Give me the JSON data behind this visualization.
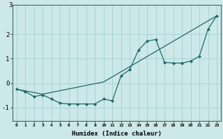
{
  "xlabel": "Humidex (Indice chaleur)",
  "bg_color": "#cce8e8",
  "line_color": "#1a6b6b",
  "grid_color": "#aad4d4",
  "xlim": [
    -0.5,
    23.5
  ],
  "ylim": [
    -1.55,
    3.2
  ],
  "xticks": [
    0,
    1,
    2,
    3,
    4,
    5,
    6,
    7,
    8,
    9,
    10,
    11,
    12,
    13,
    14,
    15,
    16,
    17,
    18,
    19,
    20,
    21,
    22,
    23
  ],
  "yticks": [
    -1,
    0,
    1,
    2
  ],
  "line1_x": [
    0,
    3,
    10,
    23
  ],
  "line1_y": [
    -0.25,
    -0.45,
    0.05,
    2.75
  ],
  "line2_x": [
    0,
    1,
    2,
    3,
    4,
    5,
    6,
    7,
    8,
    9,
    10,
    11,
    12,
    13,
    14,
    15,
    16,
    17,
    18,
    19,
    20,
    21,
    22,
    23
  ],
  "line2_y": [
    -0.25,
    -0.35,
    -0.55,
    -0.48,
    -0.65,
    -0.82,
    -0.85,
    -0.85,
    -0.85,
    -0.85,
    -0.65,
    -0.72,
    0.3,
    0.55,
    1.35,
    1.72,
    1.78,
    0.85,
    0.82,
    0.82,
    0.9,
    1.1,
    2.2,
    2.75
  ]
}
